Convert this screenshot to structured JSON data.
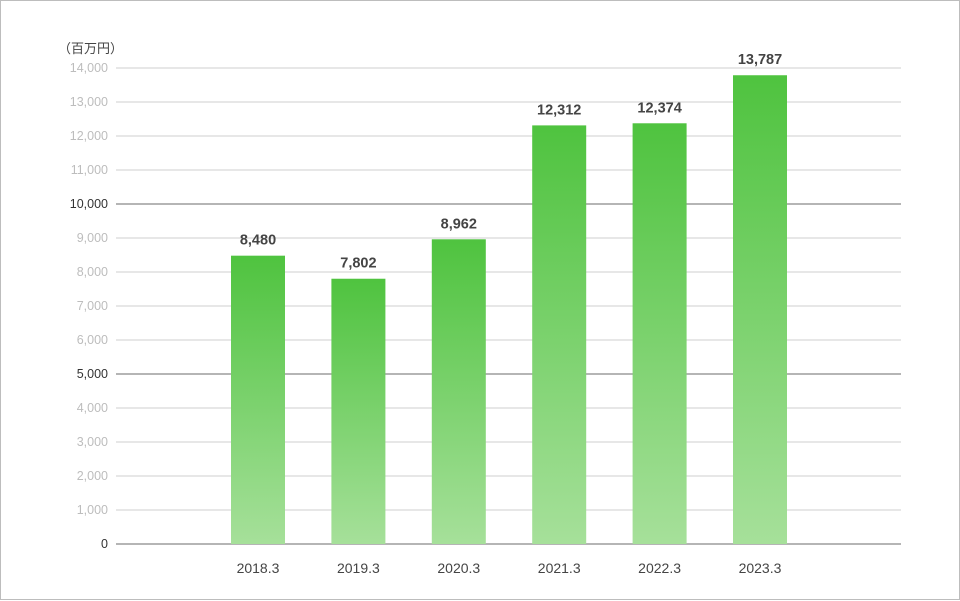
{
  "chart_data": {
    "type": "bar",
    "unit_label": "（百万円）",
    "categories": [
      "2018.3",
      "2019.3",
      "2020.3",
      "2021.3",
      "2022.3",
      "2023.3"
    ],
    "values": [
      8480,
      7802,
      8962,
      12312,
      12374,
      13787
    ],
    "value_labels": [
      "8,480",
      "7,802",
      "8,962",
      "12,312",
      "12,374",
      "13,787"
    ],
    "ylim": [
      0,
      14000
    ],
    "yticks": [
      "0",
      "1,000",
      "2,000",
      "3,000",
      "4,000",
      "5,000",
      "6,000",
      "7,000",
      "8,000",
      "9,000",
      "10,000",
      "11,000",
      "12,000",
      "13,000",
      "14,000"
    ],
    "grid": true,
    "bar_color_top": "#4fc33f",
    "bar_color_bottom": "#a6e09a"
  }
}
